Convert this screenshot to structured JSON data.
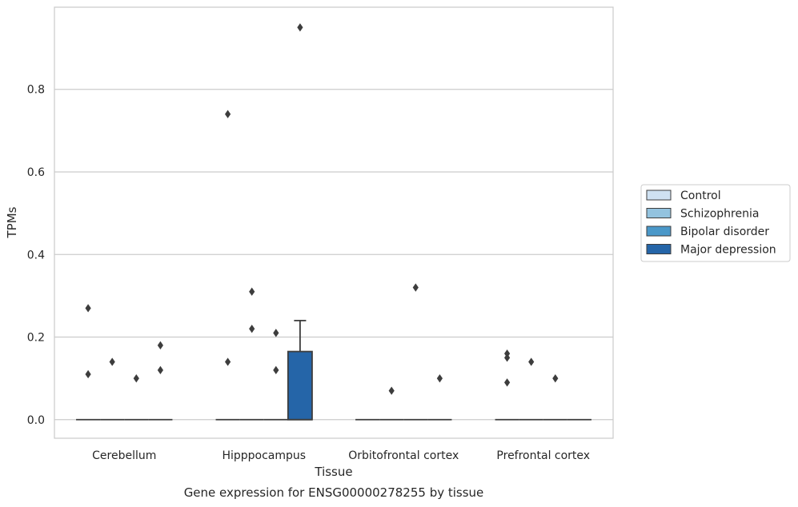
{
  "chart_data": {
    "type": "box",
    "caption": "Gene expression for ENSG00000278255 by tissue",
    "xlabel": "Tissue",
    "ylabel": "TPMs",
    "ylim": [
      -0.045,
      0.999
    ],
    "yticks": [
      0.0,
      0.2,
      0.4,
      0.6,
      0.8
    ],
    "ytick_labels": [
      "0.0",
      "0.2",
      "0.4",
      "0.6",
      "0.8"
    ],
    "categories": [
      "Cerebellum",
      "Hipppocampus",
      "Orbitofrontal cortex",
      "Prefrontal cortex"
    ],
    "grid": true,
    "legend_position": "right",
    "series": [
      {
        "name": "Control",
        "color": "#cfe1f2",
        "boxes": [
          {
            "q1": 0,
            "median": 0,
            "q3": 0,
            "whisker_low": 0,
            "whisker_high": 0,
            "outliers": [
              0.27,
              0.11
            ]
          },
          {
            "q1": 0,
            "median": 0,
            "q3": 0,
            "whisker_low": 0,
            "whisker_high": 0,
            "outliers": [
              0.74,
              0.14
            ]
          },
          {
            "q1": 0,
            "median": 0,
            "q3": 0,
            "whisker_low": 0,
            "whisker_high": 0,
            "outliers": []
          },
          {
            "q1": 0,
            "median": 0,
            "q3": 0,
            "whisker_low": 0,
            "whisker_high": 0,
            "outliers": [
              0.16,
              0.15,
              0.09
            ]
          }
        ]
      },
      {
        "name": "Schizophrenia",
        "color": "#93c3df",
        "boxes": [
          {
            "q1": 0,
            "median": 0,
            "q3": 0,
            "whisker_low": 0,
            "whisker_high": 0,
            "outliers": [
              0.14
            ]
          },
          {
            "q1": 0,
            "median": 0,
            "q3": 0,
            "whisker_low": 0,
            "whisker_high": 0,
            "outliers": [
              0.31,
              0.22
            ]
          },
          {
            "q1": 0,
            "median": 0,
            "q3": 0,
            "whisker_low": 0,
            "whisker_high": 0,
            "outliers": [
              0.07
            ]
          },
          {
            "q1": 0,
            "median": 0,
            "q3": 0,
            "whisker_low": 0,
            "whisker_high": 0,
            "outliers": [
              0.14
            ]
          }
        ]
      },
      {
        "name": "Bipolar disorder",
        "color": "#4a98c9",
        "boxes": [
          {
            "q1": 0,
            "median": 0,
            "q3": 0,
            "whisker_low": 0,
            "whisker_high": 0,
            "outliers": [
              0.1
            ]
          },
          {
            "q1": 0,
            "median": 0,
            "q3": 0,
            "whisker_low": 0,
            "whisker_high": 0,
            "outliers": [
              0.21,
              0.12
            ]
          },
          {
            "q1": 0,
            "median": 0,
            "q3": 0,
            "whisker_low": 0,
            "whisker_high": 0,
            "outliers": [
              0.32
            ]
          },
          {
            "q1": 0,
            "median": 0,
            "q3": 0,
            "whisker_low": 0,
            "whisker_high": 0,
            "outliers": [
              0.1
            ]
          }
        ]
      },
      {
        "name": "Major depression",
        "color": "#2565a8",
        "boxes": [
          {
            "q1": 0,
            "median": 0,
            "q3": 0,
            "whisker_low": 0,
            "whisker_high": 0,
            "outliers": [
              0.18,
              0.12
            ]
          },
          {
            "q1": 0,
            "median": 0,
            "q3": 0.165,
            "whisker_low": 0,
            "whisker_high": 0.24,
            "outliers": [
              0.95
            ]
          },
          {
            "q1": 0,
            "median": 0,
            "q3": 0,
            "whisker_low": 0,
            "whisker_high": 0,
            "outliers": [
              0.1
            ]
          },
          {
            "q1": 0,
            "median": 0,
            "q3": 0,
            "whisker_low": 0,
            "whisker_high": 0,
            "outliers": []
          }
        ]
      }
    ]
  }
}
